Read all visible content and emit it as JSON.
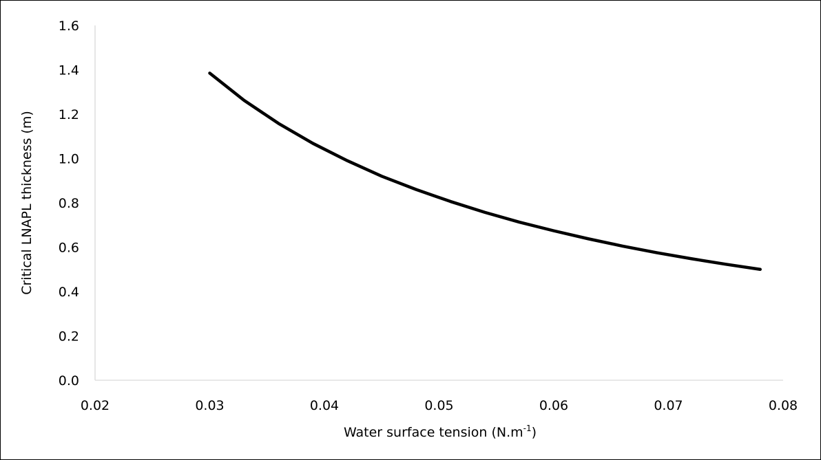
{
  "chart_data": {
    "type": "line",
    "title": "",
    "xlabel": "Water surface tension (N.m",
    "xlabel_superscript": "-1",
    "xlabel_suffix": ")",
    "ylabel": "Critical LNAPL thickness (m)",
    "xlim": [
      0.02,
      0.08
    ],
    "ylim": [
      0.0,
      1.6
    ],
    "x_ticks": [
      "0.02",
      "0.03",
      "0.04",
      "0.05",
      "0.06",
      "0.07",
      "0.08"
    ],
    "y_ticks": [
      "0.0",
      "0.2",
      "0.4",
      "0.6",
      "0.8",
      "1.0",
      "1.2",
      "1.4",
      "1.6"
    ],
    "grid": false,
    "legend": "none",
    "series": [
      {
        "color": "#000000",
        "x": [
          0.03,
          0.033,
          0.036,
          0.039,
          0.042,
          0.045,
          0.048,
          0.051,
          0.054,
          0.057,
          0.06,
          0.063,
          0.066,
          0.069,
          0.072,
          0.075,
          0.078
        ],
        "y": [
          1.385,
          1.262,
          1.158,
          1.068,
          0.99,
          0.92,
          0.86,
          0.806,
          0.757,
          0.713,
          0.674,
          0.638,
          0.605,
          0.575,
          0.548,
          0.523,
          0.5
        ]
      }
    ]
  },
  "colors": {
    "axis": "#d9d9d9",
    "line": "#000000",
    "text": "#000000"
  }
}
